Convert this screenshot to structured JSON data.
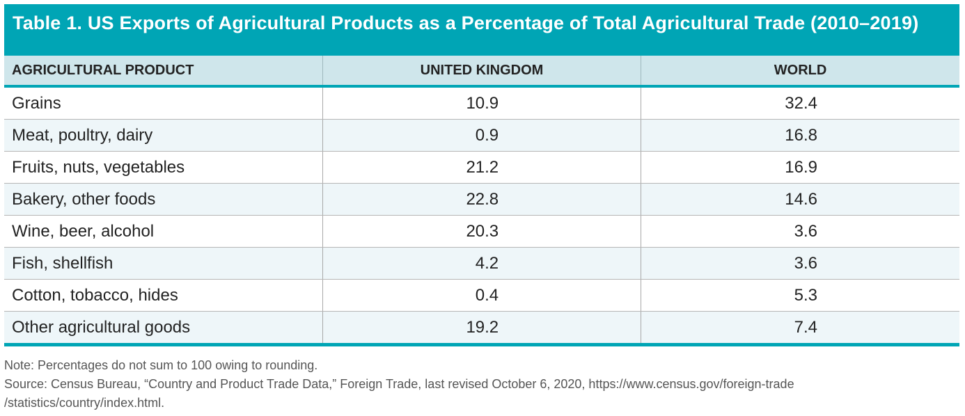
{
  "title": "Table 1. US Exports of Agricultural Products as a Percentage of Total Agricultural Trade (2010–2019)",
  "colors": {
    "accent": "#00a5b5",
    "header_bg": "#cfe6eb",
    "alt_row_bg": "#eef6f9"
  },
  "columns": [
    "AGRICULTURAL PRODUCT",
    "UNITED KINGDOM",
    "WORLD"
  ],
  "rows": [
    {
      "product": "Grains",
      "uk": "10.9",
      "world": "32.4"
    },
    {
      "product": "Meat, poultry, dairy",
      "uk": "0.9",
      "world": "16.8"
    },
    {
      "product": "Fruits, nuts, vegetables",
      "uk": "21.2",
      "world": "16.9"
    },
    {
      "product": "Bakery, other foods",
      "uk": "22.8",
      "world": "14.6"
    },
    {
      "product": "Wine, beer, alcohol",
      "uk": "20.3",
      "world": "3.6"
    },
    {
      "product": "Fish, shellfish",
      "uk": "4.2",
      "world": "3.6"
    },
    {
      "product": "Cotton, tobacco, hides",
      "uk": "0.4",
      "world": "5.3"
    },
    {
      "product": "Other agricultural goods",
      "uk": "19.2",
      "world": "7.4"
    }
  ],
  "note": "Note: Percentages do not sum to 100 owing to rounding.",
  "source_line1": "Source: Census Bureau, “Country and Product Trade Data,” Foreign Trade, last revised October 6, 2020, https://www.census.gov/foreign-trade",
  "source_line2": "/statistics/country/index.html."
}
